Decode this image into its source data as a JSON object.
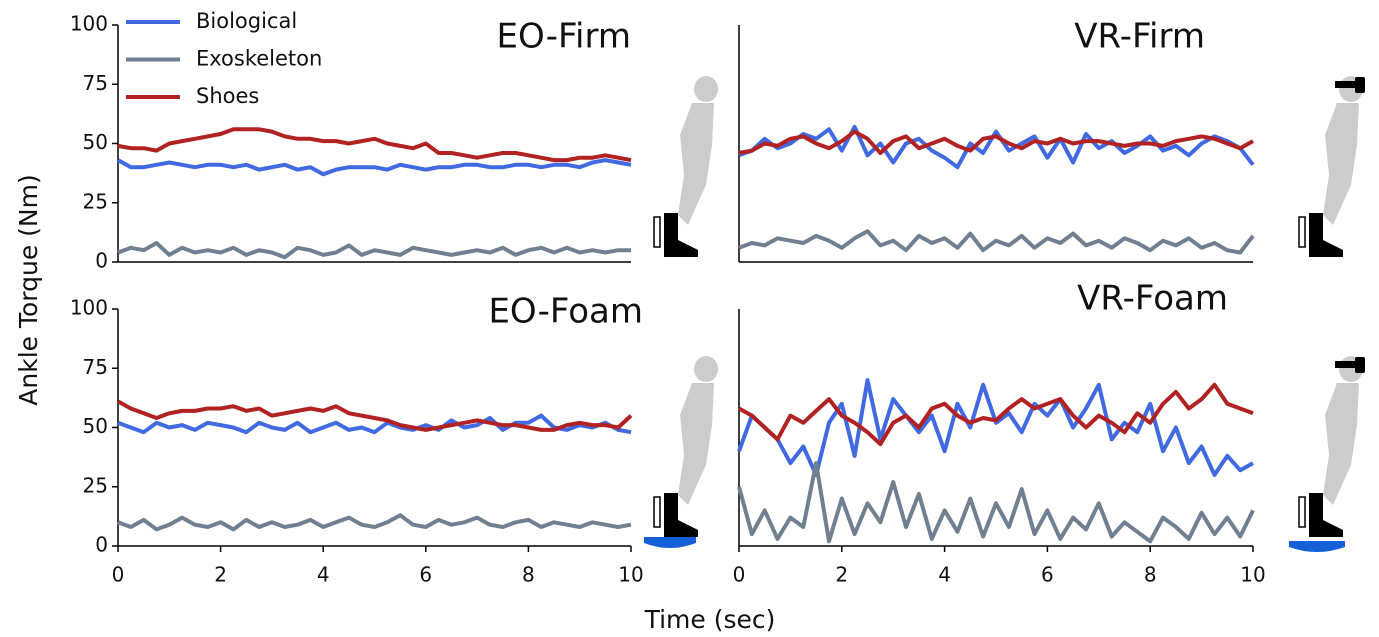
{
  "xlabel": "Time (sec)",
  "ylabel": "Ankle Torque (Nm)",
  "chart_data": [
    {
      "type": "line",
      "title": "EO-Firm",
      "legend": "upper left",
      "xlim": [
        0,
        10
      ],
      "ylim": [
        0,
        100
      ],
      "yticks": [
        0,
        25,
        50,
        75,
        100
      ],
      "x": [
        0,
        0.25,
        0.5,
        0.75,
        1,
        1.25,
        1.5,
        1.75,
        2,
        2.25,
        2.5,
        2.75,
        3,
        3.25,
        3.5,
        3.75,
        4,
        4.25,
        4.5,
        4.75,
        5,
        5.25,
        5.5,
        5.75,
        6,
        6.25,
        6.5,
        6.75,
        7,
        7.25,
        7.5,
        7.75,
        8,
        8.25,
        8.5,
        8.75,
        9,
        9.25,
        9.5,
        9.75,
        10
      ],
      "series": [
        {
          "name": "Biological",
          "color": "#4169e1",
          "values": [
            43,
            40,
            40,
            41,
            42,
            41,
            40,
            41,
            41,
            40,
            41,
            39,
            40,
            41,
            39,
            40,
            37,
            39,
            40,
            40,
            40,
            39,
            41,
            40,
            39,
            40,
            40,
            41,
            41,
            40,
            40,
            41,
            41,
            40,
            41,
            41,
            40,
            42,
            43,
            42,
            41
          ]
        },
        {
          "name": "Exoskeleton",
          "color": "#708090",
          "values": [
            4,
            6,
            5,
            8,
            3,
            6,
            4,
            5,
            4,
            6,
            3,
            5,
            4,
            2,
            6,
            5,
            3,
            4,
            7,
            3,
            5,
            4,
            3,
            6,
            5,
            4,
            3,
            4,
            5,
            4,
            6,
            3,
            5,
            6,
            4,
            6,
            4,
            5,
            4,
            5,
            5
          ]
        },
        {
          "name": "Shoes",
          "color": "#b22222",
          "values": [
            49,
            48,
            48,
            47,
            50,
            51,
            52,
            53,
            54,
            56,
            56,
            56,
            55,
            53,
            52,
            52,
            51,
            51,
            50,
            51,
            52,
            50,
            49,
            48,
            50,
            46,
            46,
            45,
            44,
            45,
            46,
            46,
            45,
            44,
            43,
            43,
            44,
            44,
            45,
            44,
            43
          ]
        }
      ]
    },
    {
      "type": "line",
      "title": "VR-Firm",
      "xlim": [
        0,
        10
      ],
      "ylim": [
        0,
        100
      ],
      "x": [
        0,
        0.25,
        0.5,
        0.75,
        1,
        1.25,
        1.5,
        1.75,
        2,
        2.25,
        2.5,
        2.75,
        3,
        3.25,
        3.5,
        3.75,
        4,
        4.25,
        4.5,
        4.75,
        5,
        5.25,
        5.5,
        5.75,
        6,
        6.25,
        6.5,
        6.75,
        7,
        7.25,
        7.5,
        7.75,
        8,
        8.25,
        8.5,
        8.75,
        9,
        9.25,
        9.5,
        9.75,
        10
      ],
      "series": [
        {
          "color": "#4169e1",
          "values": [
            45,
            47,
            52,
            48,
            50,
            54,
            52,
            56,
            47,
            57,
            45,
            50,
            42,
            50,
            52,
            47,
            44,
            40,
            50,
            46,
            55,
            47,
            50,
            53,
            44,
            52,
            42,
            54,
            48,
            51,
            46,
            49,
            53,
            47,
            49,
            45,
            50,
            53,
            51,
            48,
            41
          ]
        },
        {
          "color": "#708090",
          "values": [
            6,
            8,
            7,
            10,
            9,
            8,
            11,
            9,
            6,
            10,
            13,
            7,
            9,
            5,
            11,
            8,
            10,
            6,
            12,
            5,
            9,
            7,
            11,
            6,
            10,
            8,
            12,
            7,
            9,
            6,
            10,
            8,
            5,
            9,
            7,
            10,
            6,
            8,
            5,
            4,
            11
          ]
        },
        {
          "color": "#b22222",
          "values": [
            46,
            47,
            50,
            49,
            52,
            53,
            50,
            48,
            51,
            55,
            52,
            46,
            51,
            53,
            48,
            50,
            52,
            49,
            47,
            52,
            53,
            50,
            48,
            51,
            50,
            52,
            50,
            51,
            51,
            50,
            49,
            50,
            50,
            49,
            51,
            52,
            53,
            52,
            50,
            48,
            51
          ]
        }
      ]
    },
    {
      "type": "line",
      "title": "EO-Foam",
      "xlim": [
        0,
        10
      ],
      "ylim": [
        0,
        100
      ],
      "yticks": [
        0,
        25,
        50,
        75,
        100
      ],
      "xticks": [
        0,
        2,
        4,
        6,
        8,
        10
      ],
      "x": [
        0,
        0.25,
        0.5,
        0.75,
        1,
        1.25,
        1.5,
        1.75,
        2,
        2.25,
        2.5,
        2.75,
        3,
        3.25,
        3.5,
        3.75,
        4,
        4.25,
        4.5,
        4.75,
        5,
        5.25,
        5.5,
        5.75,
        6,
        6.25,
        6.5,
        6.75,
        7,
        7.25,
        7.5,
        7.75,
        8,
        8.25,
        8.5,
        8.75,
        9,
        9.25,
        9.5,
        9.75,
        10
      ],
      "series": [
        {
          "color": "#4169e1",
          "values": [
            52,
            50,
            48,
            52,
            50,
            51,
            49,
            52,
            51,
            50,
            48,
            52,
            50,
            49,
            52,
            48,
            50,
            52,
            49,
            50,
            48,
            52,
            50,
            49,
            51,
            49,
            53,
            50,
            51,
            54,
            49,
            52,
            52,
            55,
            50,
            49,
            51,
            50,
            52,
            49,
            48
          ]
        },
        {
          "color": "#708090",
          "values": [
            10,
            8,
            11,
            7,
            9,
            12,
            9,
            8,
            10,
            7,
            11,
            8,
            10,
            8,
            9,
            11,
            8,
            10,
            12,
            9,
            8,
            10,
            13,
            9,
            8,
            11,
            9,
            10,
            12,
            9,
            8,
            10,
            11,
            8,
            10,
            9,
            8,
            10,
            9,
            8,
            9
          ]
        },
        {
          "color": "#b22222",
          "values": [
            61,
            58,
            56,
            54,
            56,
            57,
            57,
            58,
            58,
            59,
            57,
            58,
            55,
            56,
            57,
            58,
            57,
            59,
            56,
            55,
            54,
            53,
            51,
            50,
            49,
            50,
            51,
            52,
            53,
            52,
            51,
            51,
            50,
            49,
            49,
            51,
            52,
            51,
            51,
            50,
            55
          ]
        }
      ]
    },
    {
      "type": "line",
      "title": "VR-Foam",
      "xlim": [
        0,
        10
      ],
      "ylim": [
        0,
        100
      ],
      "xticks": [
        0,
        2,
        4,
        6,
        8,
        10
      ],
      "x": [
        0,
        0.25,
        0.5,
        0.75,
        1,
        1.25,
        1.5,
        1.75,
        2,
        2.25,
        2.5,
        2.75,
        3,
        3.25,
        3.5,
        3.75,
        4,
        4.25,
        4.5,
        4.75,
        5,
        5.25,
        5.5,
        5.75,
        6,
        6.25,
        6.5,
        6.75,
        7,
        7.25,
        7.5,
        7.75,
        8,
        8.25,
        8.5,
        8.75,
        9,
        9.25,
        9.5,
        9.75,
        10
      ],
      "series": [
        {
          "color": "#4169e1",
          "values": [
            40,
            55,
            50,
            45,
            35,
            42,
            30,
            52,
            60,
            38,
            70,
            45,
            62,
            55,
            48,
            55,
            40,
            60,
            50,
            68,
            52,
            56,
            48,
            60,
            55,
            62,
            50,
            58,
            68,
            45,
            52,
            48,
            60,
            40,
            50,
            35,
            42,
            30,
            38,
            32,
            35
          ]
        },
        {
          "color": "#708090",
          "values": [
            25,
            5,
            15,
            3,
            12,
            8,
            35,
            2,
            20,
            5,
            18,
            10,
            27,
            8,
            22,
            3,
            15,
            6,
            20,
            4,
            18,
            8,
            24,
            5,
            15,
            3,
            12,
            7,
            18,
            4,
            10,
            6,
            2,
            12,
            8,
            3,
            14,
            5,
            12,
            4,
            15
          ]
        },
        {
          "color": "#b22222",
          "values": [
            58,
            55,
            50,
            45,
            55,
            52,
            57,
            62,
            55,
            52,
            48,
            43,
            52,
            55,
            50,
            58,
            60,
            55,
            52,
            54,
            53,
            58,
            62,
            58,
            60,
            62,
            55,
            50,
            55,
            52,
            48,
            56,
            52,
            60,
            65,
            58,
            62,
            68,
            60,
            58,
            56
          ]
        }
      ]
    }
  ]
}
